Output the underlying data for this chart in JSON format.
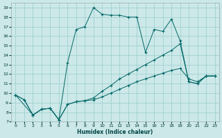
{
  "xlabel": "Humidex (Indice chaleur)",
  "background_color": "#cce8e8",
  "grid_color": "#99cccc",
  "line_color": "#006666",
  "xlim": [
    -0.5,
    23.5
  ],
  "ylim": [
    7,
    19.5
  ],
  "xticks": [
    0,
    1,
    2,
    3,
    4,
    5,
    6,
    7,
    8,
    9,
    10,
    11,
    12,
    13,
    14,
    15,
    16,
    17,
    18,
    19,
    20,
    21,
    22,
    23
  ],
  "yticks": [
    7,
    8,
    9,
    10,
    11,
    12,
    13,
    14,
    15,
    16,
    17,
    18,
    19
  ],
  "series": [
    {
      "x": [
        0,
        1,
        2,
        3,
        4,
        5,
        6,
        7,
        8,
        9,
        10,
        11,
        12,
        13,
        14,
        15,
        16,
        17,
        18,
        19,
        20,
        21,
        22,
        23
      ],
      "y": [
        9.8,
        9.3,
        7.7,
        8.3,
        8.4,
        7.2,
        8.8,
        9.1,
        9.2,
        9.3,
        9.6,
        10.0,
        10.4,
        10.8,
        11.2,
        11.5,
        11.8,
        12.1,
        12.4,
        12.6,
        11.5,
        11.2,
        11.8,
        11.8
      ]
    },
    {
      "x": [
        0,
        1,
        2,
        3,
        4,
        5,
        6,
        7,
        8,
        9,
        10,
        11,
        12,
        13,
        14,
        15,
        16,
        17,
        18,
        19,
        20,
        21,
        22,
        23
      ],
      "y": [
        9.8,
        9.3,
        7.7,
        8.3,
        8.4,
        7.2,
        8.8,
        9.1,
        9.2,
        9.5,
        10.2,
        10.8,
        11.5,
        12.0,
        12.5,
        13.0,
        13.5,
        14.0,
        14.5,
        15.2,
        11.2,
        11.0,
        11.8,
        11.8
      ]
    },
    {
      "x": [
        0,
        2,
        3,
        4,
        5,
        6,
        7,
        8,
        9,
        10,
        11,
        12,
        13,
        14,
        15,
        16,
        17,
        18,
        19,
        20,
        21,
        22,
        23
      ],
      "y": [
        9.8,
        7.7,
        8.3,
        8.4,
        7.2,
        13.2,
        16.7,
        17.0,
        19.0,
        18.3,
        18.2,
        18.2,
        18.0,
        18.0,
        14.3,
        16.7,
        16.5,
        17.8,
        15.5,
        11.2,
        11.0,
        11.8,
        11.8
      ]
    }
  ]
}
